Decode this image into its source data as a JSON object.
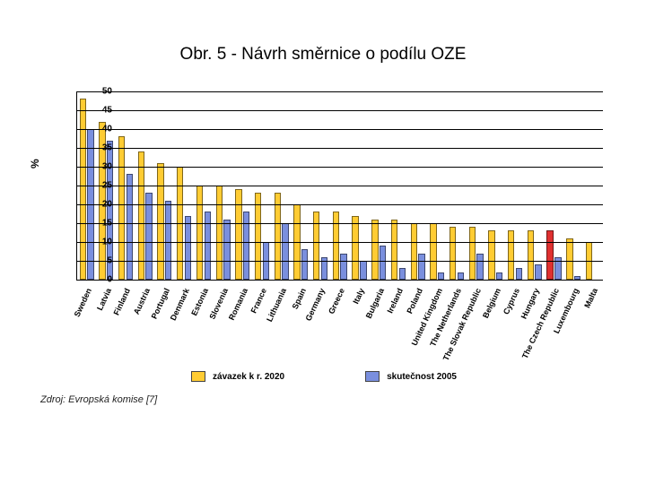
{
  "title": "Obr. 5 - Návrh směrnice o podílu OZE",
  "chart": {
    "type": "bar",
    "ylabel": "%",
    "ylim": [
      0,
      50
    ],
    "ytick_step": 5,
    "background_color": "#ffffff",
    "grid_color": "#000000",
    "axis_color": "#000000",
    "tick_fontsize": 10,
    "label_fontsize": 9,
    "bar_border": "#555555",
    "series": [
      {
        "key": "s2020",
        "label": "závazek k r. 2020",
        "color": "#ffcc33"
      },
      {
        "key": "s2005",
        "label": "skutečnost 2005",
        "color": "#7a8fde"
      }
    ],
    "highlight_color": "#e03030",
    "highlight_country": "The Czech Republic",
    "categories": [
      {
        "name": "Sweden",
        "s2020": 48,
        "s2005": 40
      },
      {
        "name": "Latvia",
        "s2020": 42,
        "s2005": 37
      },
      {
        "name": "Finland",
        "s2020": 38,
        "s2005": 28
      },
      {
        "name": "Austria",
        "s2020": 34,
        "s2005": 23
      },
      {
        "name": "Portugal",
        "s2020": 31,
        "s2005": 21
      },
      {
        "name": "Denmark",
        "s2020": 30,
        "s2005": 17
      },
      {
        "name": "Estonia",
        "s2020": 25,
        "s2005": 18
      },
      {
        "name": "Slovenia",
        "s2020": 25,
        "s2005": 16
      },
      {
        "name": "Romania",
        "s2020": 24,
        "s2005": 18
      },
      {
        "name": "France",
        "s2020": 23,
        "s2005": 10
      },
      {
        "name": "Lithuania",
        "s2020": 23,
        "s2005": 15
      },
      {
        "name": "Spain",
        "s2020": 20,
        "s2005": 8
      },
      {
        "name": "Germany",
        "s2020": 18,
        "s2005": 6
      },
      {
        "name": "Greece",
        "s2020": 18,
        "s2005": 7
      },
      {
        "name": "Italy",
        "s2020": 17,
        "s2005": 5
      },
      {
        "name": "Bulgaria",
        "s2020": 16,
        "s2005": 9
      },
      {
        "name": "Ireland",
        "s2020": 16,
        "s2005": 3
      },
      {
        "name": "Poland",
        "s2020": 15,
        "s2005": 7
      },
      {
        "name": "United Kingdom",
        "s2020": 15,
        "s2005": 2
      },
      {
        "name": "The Netherlands",
        "s2020": 14,
        "s2005": 2
      },
      {
        "name": "The Slovak Republic",
        "s2020": 14,
        "s2005": 7
      },
      {
        "name": "Belgium",
        "s2020": 13,
        "s2005": 2
      },
      {
        "name": "Cyprus",
        "s2020": 13,
        "s2005": 3
      },
      {
        "name": "Hungary",
        "s2020": 13,
        "s2005": 4
      },
      {
        "name": "The Czech Republic",
        "s2020": 13,
        "s2005": 6
      },
      {
        "name": "Luxembourg",
        "s2020": 11,
        "s2005": 1
      },
      {
        "name": "Malta",
        "s2020": 10,
        "s2005": 0
      }
    ]
  },
  "legend": {
    "items": [
      {
        "label": "závazek k r. 2020",
        "color": "#ffcc33"
      },
      {
        "label": "skutečnost 2005",
        "color": "#7a8fde"
      }
    ]
  },
  "source": "Zdroj: Evropská komise [7]"
}
